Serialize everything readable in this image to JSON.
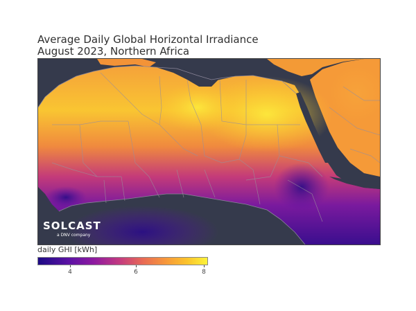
{
  "title": {
    "line1": "Average Daily Global Horizontal Irradiance",
    "line2": "August 2023, Northern Africa"
  },
  "logo": {
    "word": "SOLCAST",
    "sub": "a DNV company"
  },
  "colorbar": {
    "label": "daily GHI [kWh]",
    "ticks": [
      "4",
      "6",
      "8"
    ],
    "tick_values": [
      4,
      6,
      8
    ],
    "range": [
      3,
      8.2
    ],
    "colors": [
      "#1c0a84",
      "#8e1aa0",
      "#e86a55",
      "#fbc32c",
      "#fcf33a"
    ]
  },
  "map": {
    "region": "Northern Africa",
    "ocean_color": "#353a4c",
    "border_color": "#9a8f9a"
  }
}
